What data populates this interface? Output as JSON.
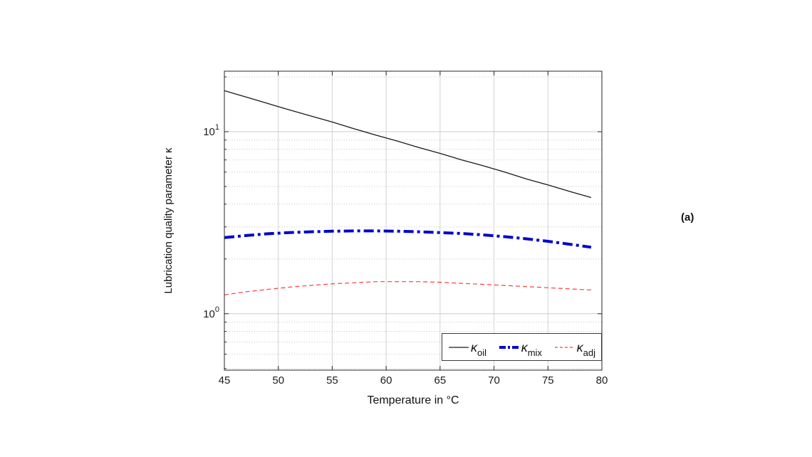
{
  "figure": {
    "background": "#ffffff",
    "panel_label": "(a)"
  },
  "chart_data": {
    "type": "line",
    "title": "",
    "xlabel": "Temperature in °C",
    "ylabel": "Lubrication quality parameter κ",
    "x_range": [
      45,
      80
    ],
    "x_ticks": [
      45,
      50,
      55,
      60,
      65,
      70,
      75,
      80
    ],
    "y_scale": "log",
    "y_range": [
      0.49,
      21.5
    ],
    "y_ticks": [
      {
        "value": 10,
        "base": "10",
        "exp": "1"
      },
      {
        "value": 1,
        "base": "10",
        "exp": "0"
      }
    ],
    "major_gridlines": [
      1,
      10
    ],
    "minor_gridlines": [
      0.5,
      0.6,
      0.7,
      0.8,
      0.9,
      2,
      3,
      4,
      5,
      6,
      7,
      8,
      9,
      20
    ],
    "grid": "on",
    "legend_position": "inside-bottom-right",
    "x": [
      45,
      47,
      49,
      51,
      53,
      55,
      57,
      59,
      61,
      63,
      65,
      67,
      69,
      71,
      73,
      75,
      77,
      79
    ],
    "series": [
      {
        "name": "kappa_oil",
        "label_base": "κ",
        "label_sub": "oil",
        "color": "#1a1a1a",
        "style": "solid",
        "width": 1.3,
        "values": [
          16.8,
          15.5,
          14.3,
          13.2,
          12.2,
          11.3,
          10.4,
          9.6,
          8.9,
          8.2,
          7.6,
          7.0,
          6.5,
          6.0,
          5.5,
          5.1,
          4.7,
          4.35
        ]
      },
      {
        "name": "kappa_mix",
        "label_base": "κ",
        "label_sub": "mix",
        "color": "#0000cc",
        "style": "dash-dot",
        "width": 4,
        "values": [
          2.62,
          2.69,
          2.75,
          2.79,
          2.82,
          2.84,
          2.85,
          2.85,
          2.84,
          2.82,
          2.79,
          2.76,
          2.71,
          2.65,
          2.58,
          2.5,
          2.41,
          2.32
        ]
      },
      {
        "name": "kappa_adj",
        "label_base": "κ",
        "label_sub": "adj",
        "color": "#ff3b3b",
        "style": "dashed",
        "width": 1.2,
        "values": [
          1.27,
          1.32,
          1.36,
          1.4,
          1.43,
          1.46,
          1.48,
          1.5,
          1.5,
          1.5,
          1.49,
          1.47,
          1.45,
          1.43,
          1.41,
          1.39,
          1.37,
          1.35
        ]
      }
    ]
  }
}
